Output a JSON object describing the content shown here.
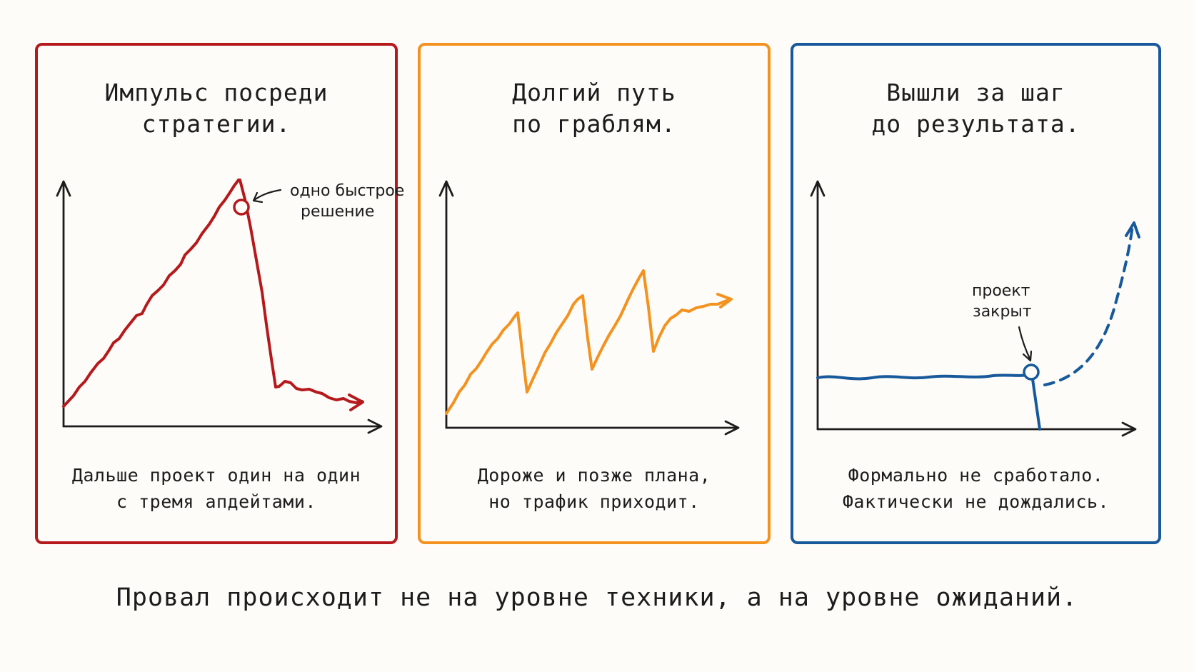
{
  "colors": {
    "background": "#fdfcf8",
    "ink": "#1c1c1c",
    "red": "#b5191c",
    "orange": "#f4921f",
    "blue": "#17599b"
  },
  "panels": [
    {
      "title": "Импульс посреди\nстратегии.",
      "caption": "Дальше проект один на один\nс тремя апдейтами.",
      "annotation_lines": [
        "одно быстрое",
        "решение"
      ],
      "color": "#b5191c"
    },
    {
      "title": "Долгий путь\nпо граблям.",
      "caption": "Дороже и позже плана,\nно трафик приходит.",
      "annotation_lines": [],
      "color": "#f4921f"
    },
    {
      "title": "Вышли за шаг\nдо результата.",
      "caption": "Формально не сработало.\nФактически не дождались.",
      "annotation_lines": [
        "проект",
        "закрыт"
      ],
      "color": "#17599b"
    }
  ],
  "footer": "Провал происходит не на уровне техники, а на уровне ожиданий."
}
